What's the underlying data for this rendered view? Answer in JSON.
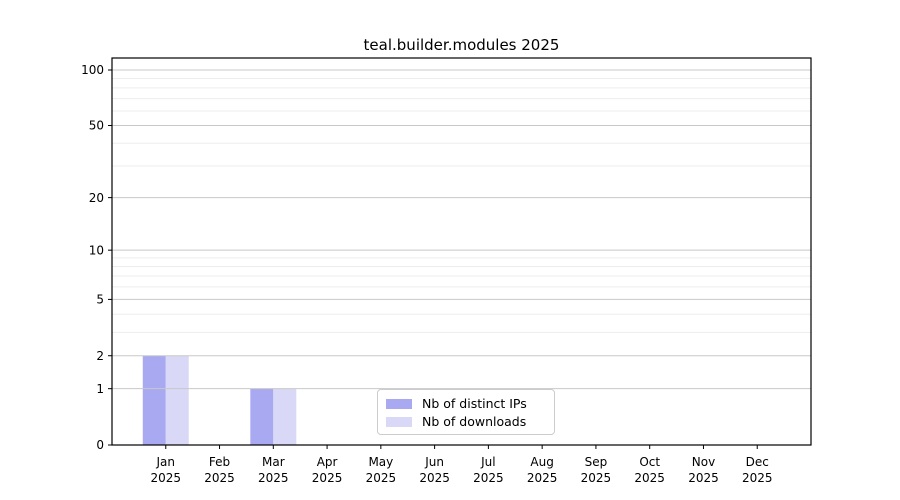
{
  "chart_data": {
    "type": "bar",
    "title": "teal.builder.modules 2025",
    "year_label": "2025",
    "categories": [
      "Jan",
      "Feb",
      "Mar",
      "Apr",
      "May",
      "Jun",
      "Jul",
      "Aug",
      "Sep",
      "Oct",
      "Nov",
      "Dec"
    ],
    "series": [
      {
        "name": "Nb of distinct IPs",
        "color": "#a9a9f2",
        "values": [
          2,
          0,
          1,
          0,
          0,
          0,
          0,
          0,
          0,
          0,
          0,
          0
        ]
      },
      {
        "name": "Nb of downloads",
        "color": "#d9d9f7",
        "values": [
          2,
          0,
          1,
          0,
          0,
          0,
          0,
          0,
          0,
          0,
          0,
          0
        ]
      }
    ],
    "xlabel": "",
    "ylabel": "",
    "yscale": "log1p",
    "ylim": [
      0,
      116
    ],
    "yticks": [
      0,
      1,
      2,
      5,
      10,
      20,
      50,
      100
    ],
    "minor_yticks": [
      3,
      4,
      6,
      7,
      8,
      9,
      30,
      40,
      60,
      70,
      80,
      90
    ],
    "grid": true,
    "legend_position": "inside lower center"
  },
  "style": {
    "major_grid_color": "#c8c8c8",
    "minor_grid_color": "#ededed",
    "axis_color": "#000000",
    "legend_border_color": "#cccccc",
    "background_color": "#ffffff"
  }
}
